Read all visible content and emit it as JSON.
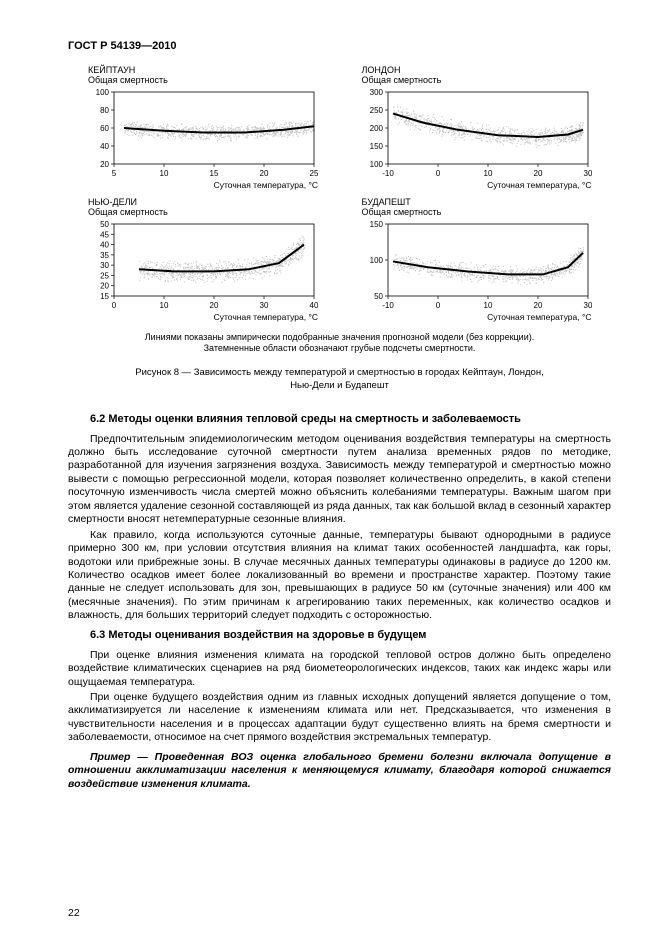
{
  "doc_id": "ГОСТ Р 54139—2010",
  "page_number": "22",
  "charts": [
    {
      "city": "КЕЙПТАУН",
      "ylabel": "Общая смертность",
      "xlabel": "Суточная температура, °С",
      "xmin": 5,
      "xmax": 25,
      "xticks": [
        5,
        10,
        15,
        20,
        25
      ],
      "ymin": 20,
      "ymax": 100,
      "yticks": [
        20,
        40,
        60,
        80,
        100
      ],
      "scatter_color": "#bfbfbf",
      "line_color": "#000000",
      "line_width": 2,
      "line_pts": [
        [
          6,
          60
        ],
        [
          10,
          57
        ],
        [
          14,
          55
        ],
        [
          18,
          55
        ],
        [
          22,
          58
        ],
        [
          25,
          62
        ]
      ],
      "scatter_band": {
        "y_center": [
          60,
          57,
          55,
          55,
          58,
          62
        ],
        "spread": 10
      },
      "aspect": 2.4
    },
    {
      "city": "ЛОНДОН",
      "ylabel": "Общая смертность",
      "xlabel": "Суточная температура, °С",
      "xmin": -10,
      "xmax": 30,
      "xticks": [
        -10,
        0,
        10,
        20,
        30
      ],
      "ymin": 100,
      "ymax": 300,
      "yticks": [
        100,
        150,
        200,
        250,
        300
      ],
      "scatter_color": "#bfbfbf",
      "line_color": "#000000",
      "line_width": 2,
      "line_pts": [
        [
          -9,
          240
        ],
        [
          -3,
          215
        ],
        [
          4,
          195
        ],
        [
          12,
          180
        ],
        [
          20,
          175
        ],
        [
          26,
          182
        ],
        [
          29,
          195
        ]
      ],
      "scatter_band": {
        "y_center": [
          240,
          215,
          195,
          180,
          175,
          182,
          195
        ],
        "spread": 30
      },
      "aspect": 2.4
    },
    {
      "city": "НЬЮ-ДЕЛИ",
      "ylabel": "Общая смертность",
      "xlabel": "Суточная температура, °С",
      "xmin": 0,
      "xmax": 40,
      "xticks": [
        0,
        10,
        20,
        30,
        40
      ],
      "ymin": 15,
      "ymax": 50,
      "yticks": [
        15,
        20,
        25,
        30,
        35,
        40,
        45,
        50
      ],
      "scatter_color": "#bfbfbf",
      "line_color": "#000000",
      "line_width": 2,
      "line_pts": [
        [
          5,
          28
        ],
        [
          12,
          27
        ],
        [
          20,
          27
        ],
        [
          27,
          28
        ],
        [
          33,
          31
        ],
        [
          38,
          40
        ]
      ],
      "scatter_band": {
        "y_center": [
          28,
          27,
          27,
          28,
          31,
          40
        ],
        "spread": 6
      },
      "aspect": 2.4
    },
    {
      "city": "БУДАПЕШТ",
      "ylabel": "Общая смертность",
      "xlabel": "Суточная температура, °С",
      "xmin": -10,
      "xmax": 30,
      "xticks": [
        -10,
        0,
        10,
        20,
        30
      ],
      "ymin": 50,
      "ymax": 150,
      "yticks": [
        50,
        100,
        150
      ],
      "scatter_color": "#bfbfbf",
      "line_color": "#000000",
      "line_width": 2,
      "line_pts": [
        [
          -9,
          98
        ],
        [
          -2,
          90
        ],
        [
          6,
          84
        ],
        [
          14,
          80
        ],
        [
          21,
          80
        ],
        [
          26,
          90
        ],
        [
          29,
          110
        ]
      ],
      "scatter_band": {
        "y_center": [
          98,
          90,
          84,
          80,
          80,
          90,
          110
        ],
        "spread": 14
      },
      "aspect": 2.4
    }
  ],
  "subcaption": "Линиями показаны эмпирически подобранные значения прогнозной модели (без коррекции).\nЗатемненные области обозначают грубые подсчеты смертности.",
  "figcaption": "Рисунок 8 — Зависимость между температурой и смертностью в городах Кейптаун, Лондон,\nНью-Дели и Будапешт",
  "sections": {
    "s62_head": "6.2 Методы оценки влияния тепловой среды на смертность и заболеваемость",
    "s62_p1": "Предпочтительным эпидемиологическим методом оценивания воздействия температуры на смертность должно быть исследование суточной смертности путем анализа временных рядов по методике, разработанной для изучения загрязнения воздуха. Зависимость между температурой и смертностью можно вывести с помощью регрессионной модели, которая позволяет количественно определить, в какой степени посуточную изменчивость числа смертей можно объяснить колебаниями температуры. Важным шагом при этом является удаление сезонной составляющей из ряда данных, так как большой вклад в сезонный характер смертности вносят нетемпературные сезонные влияния.",
    "s62_p2": "Как правило, когда используются суточные данные, температуры бывают однородными в радиусе примерно 300 км, при условии отсутствия влияния на климат таких особенностей ландшафта, как горы, водотоки или прибрежные зоны. В случае месячных данных температуры одинаковы в радиусе до 1200 км. Количество осадков имеет более локализованный во времени и пространстве характер. Поэтому такие данные не следует использовать для зон, превышающих в радиусе 50 км (суточные значения) или 400 км (месячные значения). По этим причинам к агрегированию таких переменных, как количество осадков и влажность, для больших территорий следует подходить с осторожностью.",
    "s63_head": "6.3 Методы оценивания воздействия на здоровье в будущем",
    "s63_p1": "При оценке влияния изменения климата на городской тепловой остров должно быть определено воздействие климатических сценариев на ряд биометеорологических индексов, таких как индекс жары или ощущаемая температура.",
    "s63_p2": "При оценке будущего воздействия одним из главных исходных допущений является допущение о том, акклиматизируется ли население к изменениям климата или нет. Предсказывается, что изменения в чувствительности населения и в процессах адаптации будут существенно влиять на бремя смертности и заболеваемости, относимое на счет прямого воздействия экстремальных температур.",
    "example": "Пример — Проведенная ВОЗ оценка глобального бремени болезни включала допущение в отношении акклиматизации населения к меняющемуся климату, благодаря которой снижается воздействие изменения климата."
  }
}
